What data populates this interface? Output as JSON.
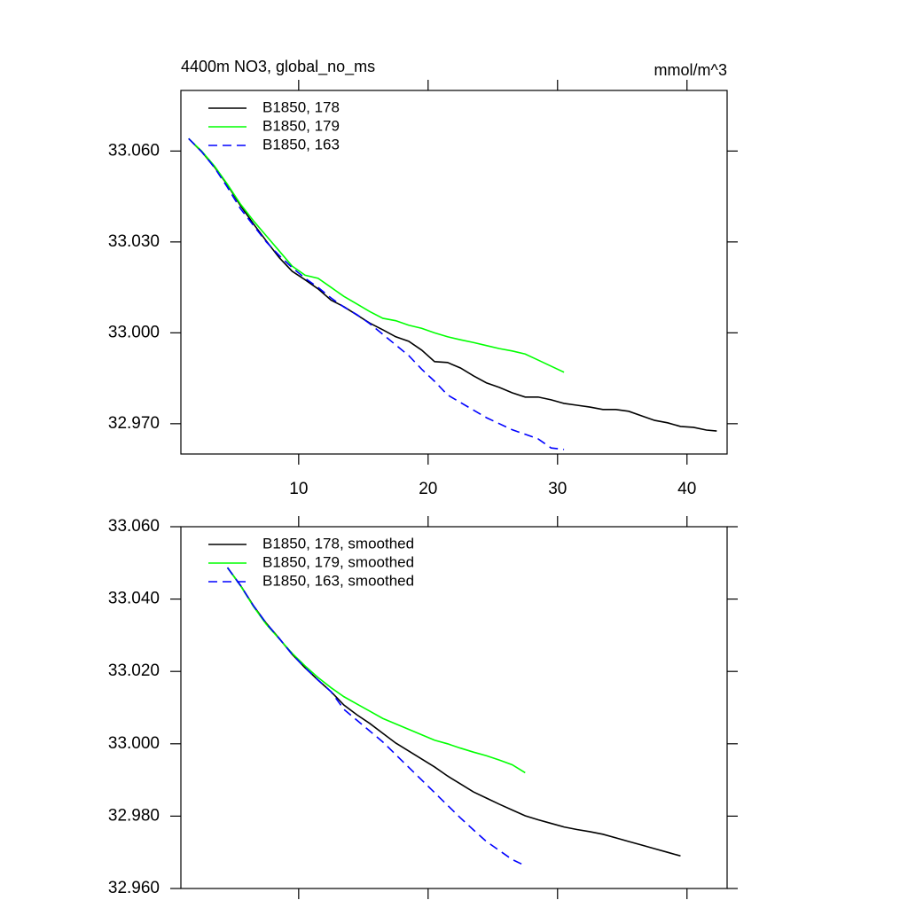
{
  "chart_data": [
    {
      "type": "line",
      "title": "4400m NO3, global_no_ms",
      "units": "mmol/m^3",
      "xlim": [
        0.9,
        43.1
      ],
      "xticks": [
        10,
        20,
        30,
        40
      ],
      "ylim": [
        32.96,
        33.08
      ],
      "yticks": [
        {
          "value": 32.97,
          "label": "32.970"
        },
        {
          "value": 33.0,
          "label": "33.000"
        },
        {
          "value": 33.03,
          "label": "33.030"
        },
        {
          "value": 33.06,
          "label": "33.060"
        }
      ],
      "legend": "upper left",
      "series": [
        {
          "name": "B1850, 178",
          "color": "#000000",
          "dash": false,
          "x": [
            1.5,
            2.5,
            3.5,
            4.5,
            5.5,
            6.5,
            7.5,
            8.5,
            9.5,
            10.5,
            11.5,
            12.5,
            13.5,
            14.5,
            15.5,
            16.5,
            17.5,
            18.5,
            19.5,
            20.5,
            21.5,
            22.5,
            23.5,
            24.5,
            25.5,
            26.5,
            27.5,
            28.5,
            29.5,
            30.5,
            31.5,
            32.5,
            33.5,
            34.5,
            35.5,
            36.5,
            37.5,
            38.5,
            39.5,
            40.5,
            41.5,
            42.3
          ],
          "values": [
            33.0641,
            33.0598,
            33.0547,
            33.0488,
            33.042,
            33.036,
            33.0303,
            33.0248,
            33.0203,
            33.0175,
            33.0145,
            33.0108,
            33.0086,
            33.0059,
            33.0032,
            33.001,
            32.9987,
            32.9972,
            32.9943,
            32.9905,
            32.9902,
            32.9884,
            32.9858,
            32.9835,
            32.982,
            32.9802,
            32.9788,
            32.9788,
            32.9779,
            32.9767,
            32.9761,
            32.9755,
            32.9747,
            32.9747,
            32.9741,
            32.9726,
            32.9711,
            32.9703,
            32.9691,
            32.9688,
            32.9679,
            32.9676
          ]
        },
        {
          "name": "B1850, 179",
          "color": "#00ff00",
          "dash": false,
          "x": [
            1.5,
            2.5,
            3.5,
            4.5,
            5.5,
            6.5,
            7.5,
            8.5,
            9.5,
            10.5,
            11.5,
            12.5,
            13.5,
            14.5,
            15.5,
            16.5,
            17.5,
            18.5,
            19.5,
            20.5,
            21.5,
            22.5,
            23.5,
            24.5,
            25.5,
            26.5,
            27.5,
            28.5,
            29.5,
            30.5
          ],
          "values": [
            33.0641,
            33.06,
            33.055,
            33.049,
            33.0425,
            33.037,
            33.032,
            33.027,
            33.022,
            33.019,
            33.018,
            33.015,
            33.012,
            33.0095,
            33.007,
            33.0048,
            33.004,
            33.0025,
            33.0015,
            33.0,
            32.9987,
            32.9977,
            32.9968,
            32.9958,
            32.9948,
            32.994,
            32.993,
            32.991,
            32.989,
            32.987
          ]
        },
        {
          "name": "B1850, 163",
          "color": "#0000ff",
          "dash": true,
          "x": [
            1.5,
            2.5,
            3.5,
            4.5,
            5.5,
            6.5,
            7.5,
            8.5,
            9.5,
            10.5,
            11.5,
            12.5,
            13.5,
            14.5,
            15.5,
            16.5,
            17.5,
            18.5,
            19.5,
            20.5,
            21.5,
            22.5,
            23.5,
            24.5,
            25.5,
            26.5,
            27.5,
            28.5,
            29.5,
            30.5
          ],
          "values": [
            33.0641,
            33.0598,
            33.0545,
            33.048,
            33.041,
            33.0355,
            33.03,
            33.0255,
            33.0215,
            33.018,
            33.015,
            33.0115,
            33.0085,
            33.006,
            33.003,
            32.9995,
            32.996,
            32.9925,
            32.988,
            32.984,
            32.9795,
            32.977,
            32.9745,
            32.972,
            32.97,
            32.968,
            32.9665,
            32.965,
            32.962,
            32.9615
          ]
        }
      ]
    },
    {
      "type": "line",
      "xlim": [
        0.9,
        43.1
      ],
      "xticks": [
        10,
        20,
        30,
        40
      ],
      "ylim": [
        32.96,
        33.06
      ],
      "yticks": [
        {
          "value": 32.96,
          "label": "32.960"
        },
        {
          "value": 32.98,
          "label": "32.980"
        },
        {
          "value": 33.0,
          "label": "33.000"
        },
        {
          "value": 33.02,
          "label": "33.020"
        },
        {
          "value": 33.04,
          "label": "33.040"
        },
        {
          "value": 33.06,
          "label": "33.060"
        }
      ],
      "legend": "upper left",
      "series": [
        {
          "name": "B1850, 178, smoothed",
          "color": "#000000",
          "dash": false,
          "x": [
            4.5,
            5.5,
            6.5,
            7.5,
            8.5,
            9.5,
            10.5,
            11.5,
            12.5,
            13.5,
            14.5,
            15.5,
            16.5,
            17.5,
            18.5,
            19.5,
            20.5,
            21.5,
            22.5,
            23.5,
            24.5,
            25.5,
            26.5,
            27.5,
            28.5,
            29.5,
            30.5,
            31.5,
            32.5,
            33.5,
            34.5,
            35.5,
            36.5,
            37.5,
            38.5,
            39.5
          ],
          "values": [
            33.0487,
            33.0438,
            33.0382,
            33.0333,
            33.0291,
            33.0247,
            33.021,
            33.0176,
            33.0144,
            33.0107,
            33.008,
            33.0056,
            33.0029,
            33.0002,
            32.998,
            32.9958,
            32.9936,
            32.9911,
            32.9889,
            32.9867,
            32.985,
            32.9833,
            32.9817,
            32.9801,
            32.979,
            32.978,
            32.977,
            32.9763,
            32.9757,
            32.975,
            32.974,
            32.973,
            32.972,
            32.971,
            32.97,
            32.969
          ]
        },
        {
          "name": "B1850, 179, smoothed",
          "color": "#00ff00",
          "dash": false,
          "x": [
            4.5,
            5.5,
            6.5,
            7.5,
            8.5,
            9.5,
            10.5,
            11.5,
            12.5,
            13.5,
            14.5,
            15.5,
            16.5,
            17.5,
            18.5,
            19.5,
            20.5,
            21.5,
            22.5,
            23.5,
            24.5,
            25.5,
            26.5,
            27.5
          ],
          "values": [
            33.0487,
            33.0437,
            33.038,
            33.033,
            33.029,
            33.025,
            33.0215,
            33.0183,
            33.0155,
            33.013,
            33.011,
            33.009,
            33.007,
            33.0055,
            33.004,
            33.0025,
            33.001,
            33.0,
            32.9988,
            32.9977,
            32.9967,
            32.9955,
            32.9942,
            32.992
          ]
        },
        {
          "name": "B1850, 163, smoothed",
          "color": "#0000ff",
          "dash": true,
          "x": [
            4.5,
            5.5,
            6.5,
            7.5,
            8.5,
            9.5,
            10.5,
            11.5,
            12.5,
            13.5,
            14.5,
            15.5,
            16.5,
            17.5,
            18.5,
            19.5,
            20.5,
            21.5,
            22.5,
            23.5,
            24.5,
            25.5,
            26.5,
            27.5
          ],
          "values": [
            33.0487,
            33.0438,
            33.0382,
            33.0333,
            33.0291,
            33.0247,
            33.021,
            33.0176,
            33.0144,
            33.0095,
            33.0065,
            33.0035,
            33.0005,
            32.997,
            32.9935,
            32.99,
            32.9865,
            32.983,
            32.9795,
            32.9762,
            32.973,
            32.9705,
            32.968,
            32.9663
          ]
        }
      ]
    }
  ]
}
